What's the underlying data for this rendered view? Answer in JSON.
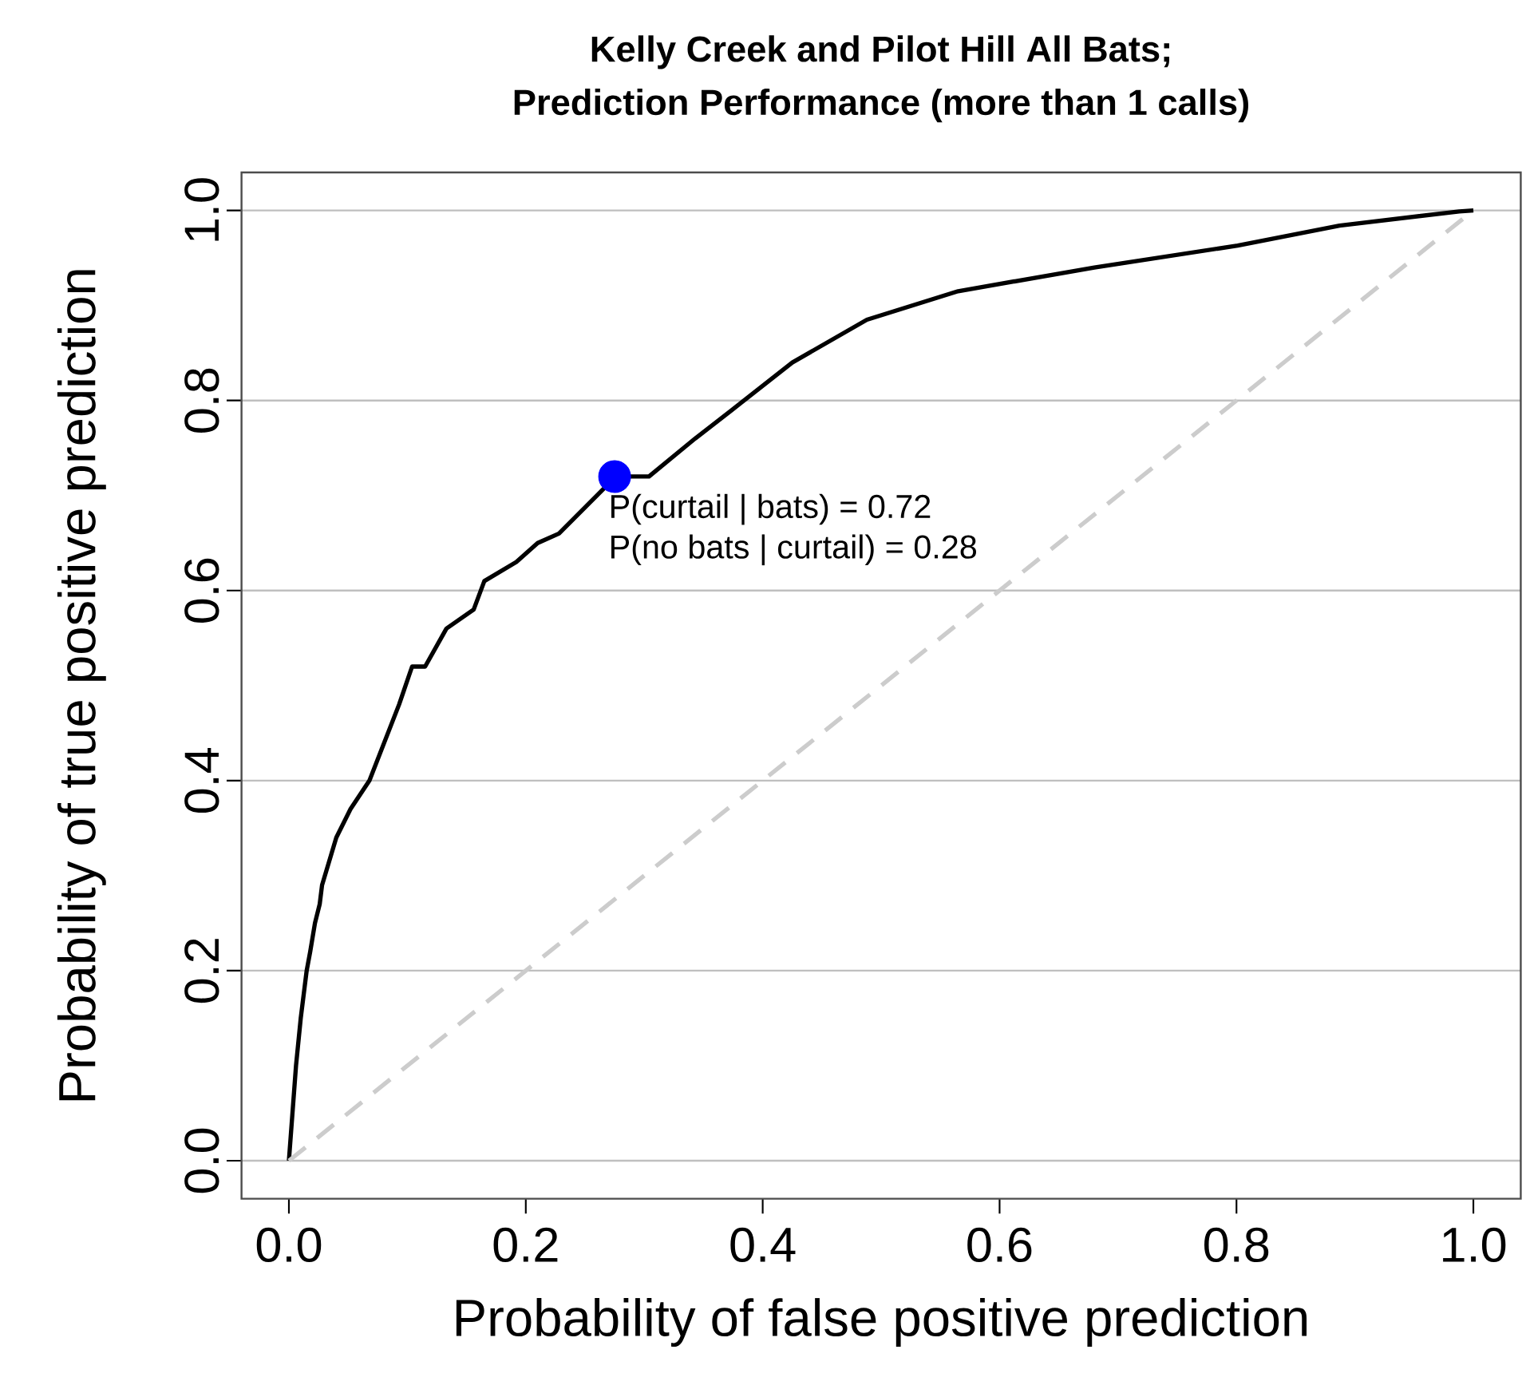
{
  "chart_data": {
    "type": "line",
    "title": "Kelly Creek and Pilot Hill All Bats;",
    "subtitle": "Prediction Performance (more than 1 calls)",
    "xlabel": "Probability of false positive prediction",
    "ylabel": "Probability of true positive prediction",
    "xlim": [
      -0.04,
      1.04
    ],
    "ylim": [
      -0.04,
      1.04
    ],
    "xticks": [
      {
        "value": 0,
        "label": "0.0"
      },
      0.2,
      0.4,
      0.6,
      0.8,
      {
        "value": 1,
        "label": "1.0"
      }
    ],
    "yticks": [
      {
        "value": 0,
        "label": "0.0"
      },
      0.2,
      0.4,
      0.6,
      0.8,
      {
        "value": 1,
        "label": "1.0"
      }
    ],
    "grid": "y",
    "line_style": "solid",
    "series": [
      {
        "color": "#000000",
        "x": [
          0,
          0.003,
          0.006,
          0.01,
          0.015,
          0.018,
          0.022,
          0.026,
          0.028,
          0.04,
          0.052,
          0.068,
          0.093,
          0.104,
          0.115,
          0.133,
          0.156,
          0.165,
          0.192,
          0.21,
          0.228,
          0.268,
          0.276,
          0.304,
          0.343,
          0.374,
          0.425,
          0.488,
          0.565,
          0.68,
          0.801,
          0.887,
          0.988,
          1.0
        ],
        "values": [
          0,
          0.05,
          0.1,
          0.15,
          0.2,
          0.22,
          0.25,
          0.27,
          0.29,
          0.34,
          0.37,
          0.4,
          0.48,
          0.52,
          0.52,
          0.56,
          0.58,
          0.61,
          0.63,
          0.65,
          0.66,
          0.71,
          0.72,
          0.72,
          0.76,
          0.79,
          0.84,
          0.885,
          0.915,
          0.94,
          0.963,
          0.984,
          0.999,
          1.0
        ]
      },
      {
        "color": "#cccccc",
        "line_style": "dashed",
        "x": [
          0,
          1
        ],
        "values": [
          0,
          1
        ]
      },
      {
        "type": "scatter",
        "color": "#0000ff",
        "x": [
          0.275
        ],
        "values": [
          0.72
        ]
      }
    ],
    "annotations": [
      {
        "text": "P(curtail | bats) = 0.72",
        "x": 0.275,
        "y": 0.72
      },
      {
        "text": "P(no bats | curtail) = 0.28",
        "x": 0.275,
        "y": 0.72
      }
    ]
  }
}
